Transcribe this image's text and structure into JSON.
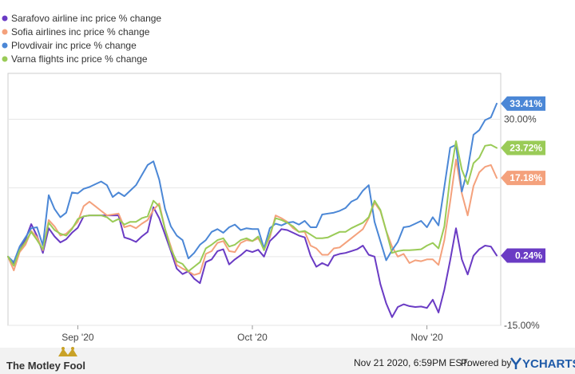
{
  "chart_data": {
    "type": "line",
    "title": "",
    "xlabel": "",
    "ylabel": "",
    "ylim": [
      -15,
      40
    ],
    "y_ticks": [
      {
        "value": 30,
        "label": "30.00%"
      },
      {
        "value": 15,
        "label": ""
      },
      {
        "value": 0,
        "label": ""
      },
      {
        "value": -15,
        "label": "-15.00%"
      }
    ],
    "x_ticks": [
      {
        "index": 12,
        "label": "Sep '20"
      },
      {
        "index": 42,
        "label": "Oct '20"
      },
      {
        "index": 72,
        "label": "Nov '20"
      }
    ],
    "legend_position": "top-left",
    "grid": "horizontal",
    "series": [
      {
        "name": "Sarafovo airline inc price % change",
        "color": "#6a3bc4",
        "last_label": "0.24%",
        "values": [
          0.0,
          -1.5,
          1.4,
          3.8,
          7.1,
          4.5,
          0.8,
          6.2,
          4.4,
          3.1,
          3.8,
          5.2,
          6.3,
          8.8,
          9.0,
          9.0,
          9.0,
          9.0,
          9.0,
          9.0,
          4.2,
          3.8,
          3.2,
          4.4,
          5.4,
          10.8,
          8.4,
          4.8,
          1.2,
          -2.6,
          -3.8,
          -3.2,
          -4.8,
          -5.8,
          -1.2,
          -0.6,
          1.2,
          1.6,
          -1.7,
          -0.6,
          0.3,
          1.4,
          1.0,
          1.5,
          0.0,
          3.4,
          4.6,
          6.0,
          5.8,
          5.2,
          4.6,
          4.2,
          0.2,
          -2.2,
          -1.4,
          -2.0,
          0.2,
          0.6,
          0.8,
          1.2,
          1.6,
          2.4,
          0.4,
          0.0,
          -6.0,
          -10.2,
          -13.2,
          -11.0,
          -10.4,
          -10.8,
          -11.0,
          -10.9,
          -11.2,
          -9.4,
          -12.2,
          -7.2,
          -0.8,
          6.2,
          -0.6,
          -3.9,
          0.2,
          1.6,
          2.4,
          2.2,
          0.24
        ]
      },
      {
        "name": "Sofia airlines inc price % change",
        "color": "#f4a17c",
        "last_label": "17.18%",
        "values": [
          0.0,
          -3.0,
          1.0,
          2.6,
          5.6,
          4.2,
          1.4,
          8.0,
          6.6,
          4.6,
          5.0,
          6.2,
          7.6,
          11.0,
          12.0,
          11.0,
          10.0,
          9.0,
          9.2,
          9.4,
          6.4,
          6.8,
          6.2,
          7.2,
          8.0,
          10.2,
          11.6,
          6.0,
          2.2,
          -1.8,
          -2.6,
          -3.2,
          -4.0,
          -3.6,
          0.6,
          1.2,
          3.0,
          3.4,
          1.2,
          1.0,
          3.0,
          3.6,
          3.4,
          4.0,
          1.8,
          4.2,
          9.0,
          8.4,
          7.6,
          6.2,
          5.4,
          5.4,
          2.4,
          1.8,
          0.4,
          0.4,
          1.8,
          2.0,
          3.0,
          4.0,
          5.0,
          6.0,
          8.4,
          11.8,
          10.0,
          5.6,
          2.2,
          0.0,
          0.6,
          -1.4,
          -0.8,
          -1.0,
          -0.6,
          -0.6,
          -1.8,
          3.6,
          12.0,
          21.2,
          13.8,
          9.0,
          15.4,
          18.4,
          19.6,
          20.0,
          17.18
        ]
      },
      {
        "name": "Plovdivair inc price % change",
        "color": "#4b87d6",
        "last_label": "33.41%",
        "values": [
          0.0,
          -1.2,
          2.2,
          4.2,
          6.2,
          6.4,
          2.4,
          13.4,
          10.4,
          8.6,
          9.6,
          14.0,
          13.8,
          14.8,
          15.2,
          15.8,
          16.4,
          15.6,
          13.0,
          14.0,
          13.2,
          14.4,
          15.6,
          17.8,
          20.0,
          20.8,
          16.8,
          10.4,
          6.6,
          4.6,
          3.6,
          -0.4,
          0.8,
          2.6,
          3.6,
          5.4,
          6.0,
          5.2,
          6.4,
          7.0,
          5.8,
          6.2,
          6.0,
          6.0,
          1.8,
          6.2,
          7.2,
          6.8,
          7.4,
          7.6,
          7.0,
          7.8,
          6.4,
          6.4,
          9.2,
          9.4,
          9.6,
          10.0,
          10.6,
          12.0,
          12.6,
          14.4,
          15.6,
          7.6,
          3.4,
          -0.8,
          1.4,
          3.2,
          6.4,
          6.6,
          7.2,
          7.8,
          6.4,
          8.6,
          6.8,
          15.2,
          23.8,
          24.4,
          14.2,
          19.0,
          26.6,
          27.6,
          29.8,
          30.4,
          33.41
        ]
      },
      {
        "name": "Varna flights inc price % change",
        "color": "#9acb57",
        "last_label": "23.72%",
        "values": [
          0.0,
          -2.0,
          1.4,
          3.2,
          5.4,
          3.6,
          1.6,
          7.4,
          5.8,
          5.0,
          4.6,
          6.0,
          8.2,
          8.8,
          9.0,
          9.0,
          9.0,
          8.6,
          7.6,
          8.2,
          7.0,
          7.6,
          7.6,
          8.4,
          8.8,
          12.2,
          11.0,
          6.0,
          1.6,
          -1.0,
          -1.6,
          -3.2,
          -2.2,
          -1.2,
          1.8,
          2.6,
          3.6,
          4.0,
          2.2,
          2.6,
          3.6,
          4.0,
          3.4,
          4.4,
          1.4,
          4.8,
          8.4,
          8.0,
          7.4,
          6.6,
          5.4,
          5.6,
          4.8,
          4.0,
          4.0,
          4.2,
          4.8,
          5.4,
          5.4,
          6.2,
          6.8,
          7.4,
          8.6,
          12.2,
          10.2,
          5.6,
          0.8,
          1.2,
          1.4,
          1.4,
          1.5,
          1.6,
          2.4,
          3.0,
          1.8,
          6.6,
          17.4,
          25.2,
          19.0,
          15.8,
          20.4,
          21.6,
          24.2,
          24.4,
          23.72
        ]
      }
    ]
  },
  "footer": {
    "brand": "The Motley Fool",
    "timestamp": "Nov 21 2020, 6:59PM EST.",
    "powered_by": "Powered by",
    "ycharts": "YCHARTS"
  },
  "colors": {
    "grid": "#e6e6e6",
    "plot_border": "#cccccc",
    "footer_bg": "#f2f2f2",
    "brand_gold": "#c9a227",
    "ycharts_blue": "#1e5aa8"
  }
}
